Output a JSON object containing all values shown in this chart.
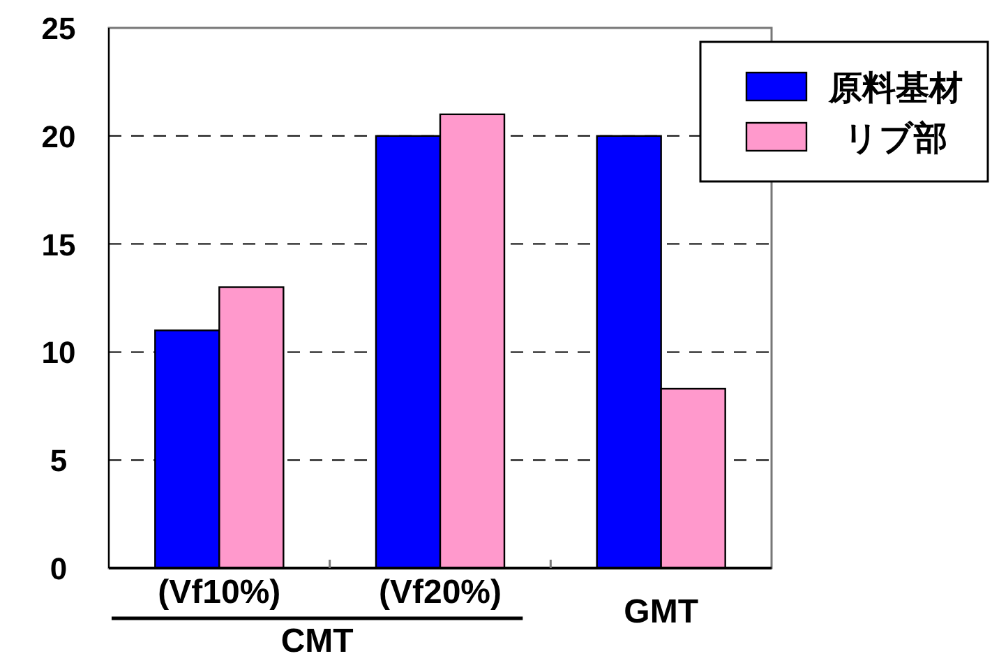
{
  "chart_data": {
    "type": "bar",
    "categories": [
      "(Vf10%)",
      "(Vf20%)",
      "GMT"
    ],
    "series": [
      {
        "name": "原料基材",
        "color": "#0000ff",
        "values": [
          11,
          20,
          20
        ]
      },
      {
        "name": "リブ部",
        "color": "#ff99cc",
        "values": [
          13,
          21,
          8.3
        ]
      }
    ],
    "ylim": [
      0,
      25
    ],
    "yticks": [
      0,
      5,
      10,
      15,
      20,
      25
    ],
    "grid": "y",
    "legend": "top right",
    "annotations": [
      "CMT"
    ]
  }
}
